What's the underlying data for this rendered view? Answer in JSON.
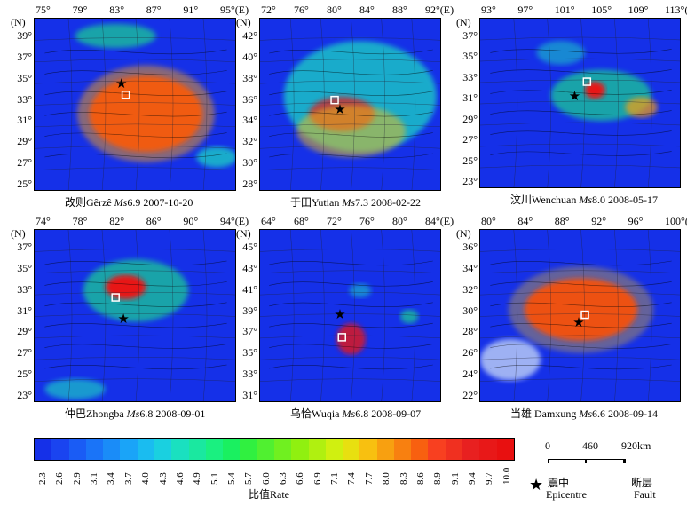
{
  "panels": [
    {
      "id": "gerze",
      "xticks": [
        "75°",
        "79°",
        "83°",
        "87°",
        "91°",
        "95°(E)"
      ],
      "yticks": [
        "39°",
        "37°",
        "35°",
        "33°",
        "31°",
        "29°",
        "27°",
        "25°"
      ],
      "n": "(N)",
      "caption_pre": "改则Gêrzê ",
      "caption_mag": "Ms",
      "caption_post": "6.9  2007-10-20"
    },
    {
      "id": "yutian",
      "xticks": [
        "72°",
        "76°",
        "80°",
        "84°",
        "88°",
        "92°(E)"
      ],
      "yticks": [
        "42°",
        "40°",
        "38°",
        "36°",
        "34°",
        "32°",
        "30°",
        "28°"
      ],
      "n": "(N)",
      "caption_pre": "于田Yutian ",
      "caption_mag": "Ms",
      "caption_post": "7.3  2008-02-22"
    },
    {
      "id": "wenchuan",
      "xticks": [
        "93°",
        "97°",
        "101°",
        "105°",
        "109°",
        "113°(E)"
      ],
      "yticks": [
        "37°",
        "35°",
        "33°",
        "31°",
        "29°",
        "27°",
        "25°",
        "23°"
      ],
      "n": "(N)",
      "caption_pre": "汶川Wenchuan ",
      "caption_mag": "Ms",
      "caption_post": "8.0  2008-05-17"
    },
    {
      "id": "zhongba",
      "xticks": [
        "74°",
        "78°",
        "82°",
        "86°",
        "90°",
        "94°(E)"
      ],
      "yticks": [
        "37°",
        "35°",
        "33°",
        "31°",
        "29°",
        "27°",
        "25°",
        "23°"
      ],
      "n": "(N)",
      "caption_pre": "仲巴Zhongba ",
      "caption_mag": "Ms",
      "caption_post": "6.8  2008-09-01"
    },
    {
      "id": "wuqia",
      "xticks": [
        "64°",
        "68°",
        "72°",
        "76°",
        "80°",
        "84°(E)"
      ],
      "yticks": [
        "45°",
        "43°",
        "41°",
        "39°",
        "37°",
        "35°",
        "33°",
        "31°"
      ],
      "n": "(N)",
      "caption_pre": "乌恰Wuqia ",
      "caption_mag": "Ms",
      "caption_post": "6.8  2008-09-07"
    },
    {
      "id": "damxung",
      "xticks": [
        "80°",
        "84°",
        "88°",
        "92°",
        "96°",
        "100°(E)"
      ],
      "yticks": [
        "36°",
        "34°",
        "32°",
        "30°",
        "28°",
        "26°",
        "24°",
        "22°"
      ],
      "n": "(N)",
      "caption_pre": "当雄 Damxung ",
      "caption_mag": "Ms",
      "caption_post": "6.6  2008-09-14"
    }
  ],
  "legend": {
    "values": [
      "2.3",
      "2.6",
      "2.9",
      "3.1",
      "3.4",
      "3.7",
      "4.0",
      "4.3",
      "4.6",
      "4.9",
      "5.1",
      "5.4",
      "5.7",
      "6.0",
      "6.3",
      "6.6",
      "6.9",
      "7.1",
      "7.4",
      "7.7",
      "8.0",
      "8.3",
      "8.6",
      "8.9",
      "9.1",
      "9.4",
      "9.7",
      "10.0"
    ],
    "colors": [
      "#1530e8",
      "#1a44f0",
      "#1a5cf5",
      "#1a74f8",
      "#1a8cf8",
      "#1aa4f8",
      "#1abcf0",
      "#1ad0e0",
      "#1ae0c0",
      "#1ae8a0",
      "#1af080",
      "#1af060",
      "#30f040",
      "#50f030",
      "#70f020",
      "#90f010",
      "#b0f010",
      "#d0f010",
      "#e8e010",
      "#f8c010",
      "#f8a010",
      "#f88010",
      "#f86010",
      "#f84020",
      "#f03020",
      "#e82020",
      "#e81818",
      "#e81010"
    ],
    "title": "比值Rate"
  },
  "scale": {
    "labels": [
      "0",
      "460",
      "920km"
    ]
  },
  "key": {
    "epicentre_cn": "震中",
    "epicentre_en": "Epicentre",
    "fault_cn": "断层",
    "fault_en": "Fault"
  }
}
